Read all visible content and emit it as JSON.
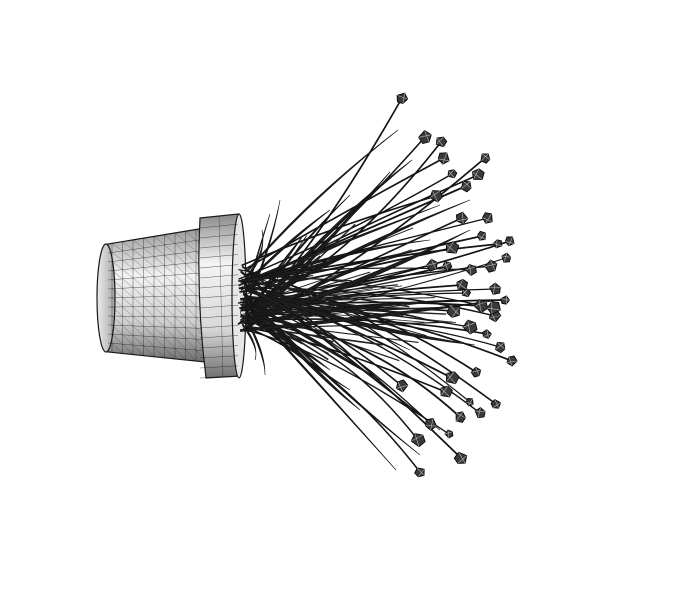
{
  "scene": {
    "subject": "potted-plant-wireframe-render",
    "colors": {
      "background": "#ffffff",
      "pot_light": "#f2f2f2",
      "pot_mid": "#bdbdbd",
      "pot_dark": "#6e6e6e",
      "mesh_line": "#1a1a1a",
      "stem": "#141414",
      "bud": "#3a3a3a"
    }
  }
}
